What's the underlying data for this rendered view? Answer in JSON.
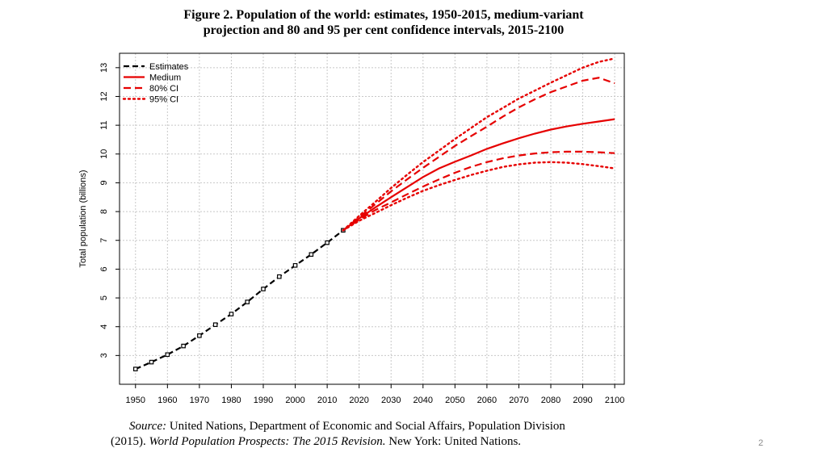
{
  "title_line1": "Figure 2.  Population of the world: estimates, 1950-2015, medium-variant",
  "title_line2": "projection and 80 and 95 per cent confidence intervals, 2015-2100",
  "source": {
    "label": "Source:",
    "line1_rest": " United Nations, Department of Economic and Social Affairs, Population Division",
    "line2_start": "(2015). ",
    "line2_italic": "World Population Prospects: The 2015 Revision.",
    "line2_end": " New York: United Nations."
  },
  "page_number": "2",
  "chart_data": {
    "type": "line",
    "ylabel": "Total population (billions)",
    "xlabel": "",
    "xlim": [
      1945,
      2103
    ],
    "ylim": [
      2.0,
      13.5
    ],
    "x_ticks": [
      "1950",
      "1960",
      "1970",
      "1980",
      "1990",
      "2000",
      "2010",
      "2020",
      "2030",
      "2040",
      "2050",
      "2060",
      "2070",
      "2080",
      "2090",
      "2100"
    ],
    "y_ticks": [
      "3",
      "4",
      "5",
      "6",
      "7",
      "8",
      "9",
      "10",
      "11",
      "12",
      "13"
    ],
    "grid": true,
    "legend_position": "top-left",
    "legend": [
      "Estimates",
      "Medium",
      "80% CI",
      "95% CI"
    ],
    "colors": {
      "estimates": "#000000",
      "projection": "#e60000",
      "grid": "#c8c8c8"
    },
    "series": [
      {
        "name": "Estimates",
        "style": "dashed-with-markers",
        "x": [
          1950,
          1955,
          1960,
          1965,
          1970,
          1975,
          1980,
          1985,
          1990,
          1995,
          2000,
          2005,
          2010,
          2015
        ],
        "values": [
          2.53,
          2.77,
          3.03,
          3.33,
          3.69,
          4.07,
          4.44,
          4.86,
          5.31,
          5.74,
          6.13,
          6.51,
          6.92,
          7.35
        ]
      },
      {
        "name": "Medium",
        "style": "solid",
        "x": [
          2015,
          2020,
          2025,
          2030,
          2035,
          2040,
          2045,
          2050,
          2055,
          2060,
          2065,
          2070,
          2075,
          2080,
          2085,
          2090,
          2095,
          2100
        ],
        "values": [
          7.35,
          7.76,
          8.14,
          8.5,
          8.85,
          9.2,
          9.5,
          9.73,
          9.95,
          10.18,
          10.37,
          10.55,
          10.71,
          10.85,
          10.96,
          11.05,
          11.13,
          11.21
        ]
      },
      {
        "name": "80% CI",
        "style": "dashed",
        "bounds": [
          {
            "x": [
              2015,
              2020,
              2025,
              2030,
              2035,
              2040,
              2045,
              2050,
              2055,
              2060,
              2065,
              2070,
              2075,
              2080,
              2085,
              2090,
              2095,
              2100
            ],
            "values": [
              7.35,
              7.8,
              8.25,
              8.7,
              9.12,
              9.52,
              9.9,
              10.28,
              10.62,
              10.95,
              11.3,
              11.62,
              11.9,
              12.15,
              12.35,
              12.55,
              12.65,
              12.46
            ]
          },
          {
            "x": [
              2015,
              2020,
              2025,
              2030,
              2035,
              2040,
              2045,
              2050,
              2055,
              2060,
              2065,
              2070,
              2075,
              2080,
              2085,
              2090,
              2095,
              2100
            ],
            "values": [
              7.35,
              7.72,
              8.05,
              8.32,
              8.6,
              8.87,
              9.12,
              9.35,
              9.55,
              9.72,
              9.85,
              9.95,
              10.02,
              10.06,
              10.08,
              10.08,
              10.06,
              10.03
            ]
          }
        ]
      },
      {
        "name": "95% CI",
        "style": "dotted",
        "bounds": [
          {
            "x": [
              2015,
              2020,
              2025,
              2030,
              2035,
              2040,
              2045,
              2050,
              2055,
              2060,
              2065,
              2070,
              2075,
              2080,
              2085,
              2090,
              2095,
              2100
            ],
            "values": [
              7.35,
              7.85,
              8.33,
              8.82,
              9.28,
              9.72,
              10.12,
              10.52,
              10.9,
              11.28,
              11.6,
              11.93,
              12.2,
              12.48,
              12.74,
              13.0,
              13.2,
              13.32
            ]
          },
          {
            "x": [
              2015,
              2020,
              2025,
              2030,
              2035,
              2040,
              2045,
              2050,
              2055,
              2060,
              2065,
              2070,
              2075,
              2080,
              2085,
              2090,
              2095,
              2100
            ],
            "values": [
              7.35,
              7.68,
              7.95,
              8.22,
              8.48,
              8.72,
              8.92,
              9.1,
              9.27,
              9.42,
              9.55,
              9.64,
              9.7,
              9.72,
              9.7,
              9.65,
              9.58,
              9.5
            ]
          }
        ]
      }
    ]
  }
}
